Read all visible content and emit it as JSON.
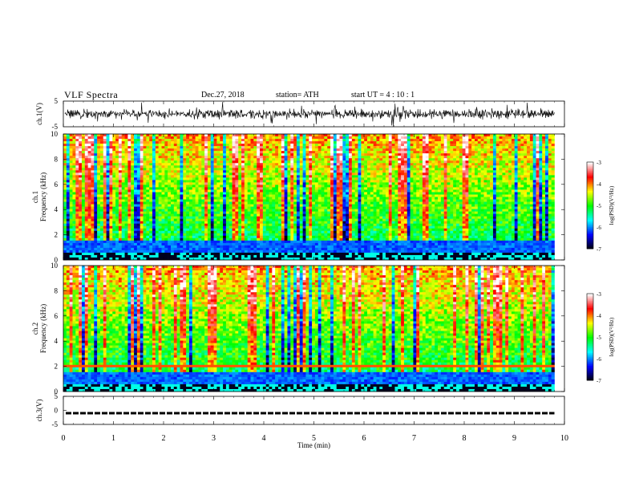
{
  "header": {
    "title": "VLF  Spectra",
    "date": "Dec.27, 2018",
    "station": "station= ATH",
    "start": "start  UT  =   4  : 10 : 1"
  },
  "chart_data": [
    {
      "type": "line",
      "id": "ch1-waveform",
      "ylabel": "ch.1(V)",
      "ylim": [
        -5,
        5
      ],
      "yticks": [
        "5",
        "-5"
      ],
      "xlim": [
        0,
        10
      ],
      "data_end_min": 9.8,
      "description_note": "",
      "samples": [
        -0.3,
        0.2,
        -0.6,
        0.5,
        -1.0,
        1.2,
        -0.4,
        0.8,
        -0.2,
        0.3,
        -0.8,
        1.0,
        -0.5,
        0.4,
        -0.9,
        0.7,
        -0.3,
        0.6,
        -1.2,
        0.9,
        -0.4,
        0.2,
        -0.7,
        1.1,
        -0.2,
        0.5,
        -0.9,
        0.6,
        -0.3,
        0.4
      ]
    },
    {
      "type": "heatmap",
      "id": "ch1-spectrogram",
      "ylabel": "ch.1\nFrequency  (kHz)",
      "ylim": [
        0,
        10
      ],
      "yticks": [
        "0",
        "2",
        "4",
        "6",
        "8",
        "10"
      ],
      "xlim": [
        0,
        10
      ],
      "data_end_min": 9.8,
      "colorbar": {
        "label": "log(PSD)(V²/Hz)",
        "range": [
          -7,
          -3
        ],
        "ticks": [
          "-3",
          "-4",
          "-5",
          "-6",
          "-7"
        ]
      }
    },
    {
      "type": "heatmap",
      "id": "ch2-spectrogram",
      "ylabel": "ch.2\nFrequency  (kHz)",
      "ylim": [
        0,
        10
      ],
      "yticks": [
        "0",
        "2",
        "4",
        "6",
        "8",
        "10"
      ],
      "xlim": [
        0,
        10
      ],
      "data_end_min": 9.8,
      "colorbar": {
        "label": "log(PSD)(V²/Hz)",
        "range": [
          -7,
          -3
        ],
        "ticks": [
          "-3",
          "-4",
          "-5",
          "-6",
          "-7"
        ]
      }
    },
    {
      "type": "line",
      "id": "ch3-waveform",
      "ylabel": "ch.3(V)",
      "ylim": [
        -5,
        5
      ],
      "yticks": [
        "5",
        "0",
        "-5"
      ],
      "xlim": [
        0,
        10
      ],
      "data_end_min": 9.8,
      "level": -1.0
    }
  ],
  "xaxis": {
    "label": "Time  (min)",
    "ticks": [
      "0",
      "1",
      "2",
      "3",
      "4",
      "5",
      "6",
      "7",
      "8",
      "9",
      "10"
    ]
  },
  "colors": {
    "colormap": [
      "#000000",
      "#0000ff",
      "#00ffff",
      "#00ff00",
      "#ffff00",
      "#ff0000",
      "#ffffff"
    ]
  }
}
